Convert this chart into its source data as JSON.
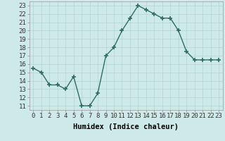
{
  "x": [
    0,
    1,
    2,
    3,
    4,
    5,
    6,
    7,
    8,
    9,
    10,
    11,
    12,
    13,
    14,
    15,
    16,
    17,
    18,
    19,
    20,
    21,
    22,
    23
  ],
  "y": [
    15.5,
    15.0,
    13.5,
    13.5,
    13.0,
    14.5,
    11.0,
    11.0,
    12.5,
    17.0,
    18.0,
    20.0,
    21.5,
    23.0,
    22.5,
    22.0,
    21.5,
    21.5,
    20.0,
    17.5,
    16.5,
    16.5,
    16.5,
    16.5
  ],
  "line_color": "#2d6e5e",
  "marker_color": "#2d6e5e",
  "bg_color": "#ceeae8",
  "grid_color": "#b0d4d0",
  "xlabel": "Humidex (Indice chaleur)",
  "xlim": [
    -0.5,
    23.5
  ],
  "ylim": [
    10.5,
    23.5
  ],
  "yticks": [
    11,
    12,
    13,
    14,
    15,
    16,
    17,
    18,
    19,
    20,
    21,
    22,
    23
  ],
  "xticks": [
    0,
    1,
    2,
    3,
    4,
    5,
    6,
    7,
    8,
    9,
    10,
    11,
    12,
    13,
    14,
    15,
    16,
    17,
    18,
    19,
    20,
    21,
    22,
    23
  ],
  "xtick_labels": [
    "0",
    "1",
    "2",
    "3",
    "4",
    "5",
    "6",
    "7",
    "8",
    "9",
    "10",
    "11",
    "12",
    "13",
    "14",
    "15",
    "16",
    "17",
    "18",
    "19",
    "20",
    "21",
    "22",
    "23"
  ],
  "font_size": 6.5,
  "xlabel_fontsize": 7.5,
  "marker_size": 4,
  "line_width": 1.0
}
